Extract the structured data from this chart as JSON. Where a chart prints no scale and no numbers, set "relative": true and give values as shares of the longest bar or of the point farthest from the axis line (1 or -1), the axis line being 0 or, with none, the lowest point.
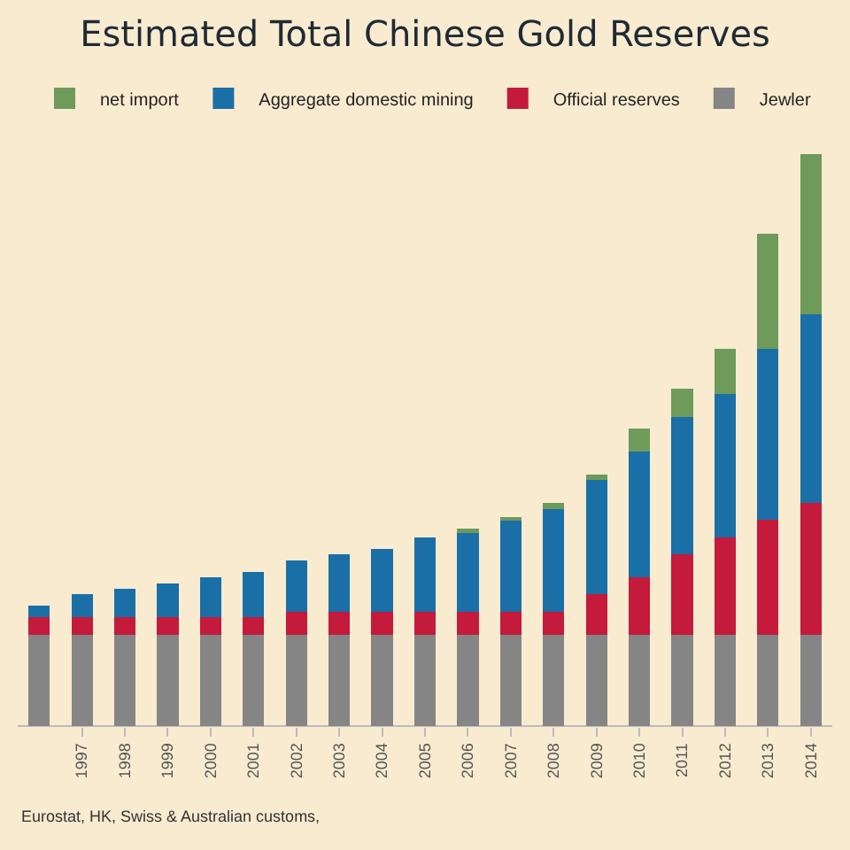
{
  "chart_data": {
    "type": "bar",
    "title": "Estimated Total Chinese Gold Reserves",
    "stacked": true,
    "relative": true,
    "legend": "top",
    "categories": [
      null,
      "1997",
      "1998",
      "1999",
      "2000",
      "2001",
      "2002",
      "2003",
      "2004",
      "2005",
      "2006",
      "2007",
      "2008",
      "2009",
      "2010",
      "2011",
      "2012",
      "2013",
      "2014"
    ],
    "series": [
      {
        "name": "Jewler",
        "color": "#858585",
        "values": [
          0.16,
          0.16,
          0.16,
          0.16,
          0.16,
          0.16,
          0.16,
          0.16,
          0.16,
          0.16,
          0.16,
          0.16,
          0.16,
          0.16,
          0.16,
          0.16,
          0.16,
          0.16,
          0.16
        ]
      },
      {
        "name": "Official reserves",
        "color": "#c41a3b",
        "values": [
          0.03,
          0.03,
          0.03,
          0.03,
          0.03,
          0.03,
          0.04,
          0.04,
          0.04,
          0.04,
          0.04,
          0.04,
          0.04,
          0.07,
          0.1,
          0.14,
          0.17,
          0.2,
          0.23
        ]
      },
      {
        "name": "Aggregate domestic mining",
        "color": "#1a6fa6",
        "values": [
          0.02,
          0.04,
          0.05,
          0.06,
          0.07,
          0.08,
          0.09,
          0.1,
          0.11,
          0.13,
          0.14,
          0.16,
          0.18,
          0.2,
          0.22,
          0.24,
          0.25,
          0.3,
          0.33
        ]
      },
      {
        "name": "net import",
        "color": "#6e9a5a",
        "values": [
          0,
          0,
          0,
          0,
          0,
          0,
          0,
          0,
          0,
          0,
          0.005,
          0.005,
          0.01,
          0.01,
          0.04,
          0.05,
          0.08,
          0.2,
          0.28
        ]
      }
    ],
    "annotations": [
      "Eurostat, HK, Swiss & Australian customs,"
    ]
  }
}
